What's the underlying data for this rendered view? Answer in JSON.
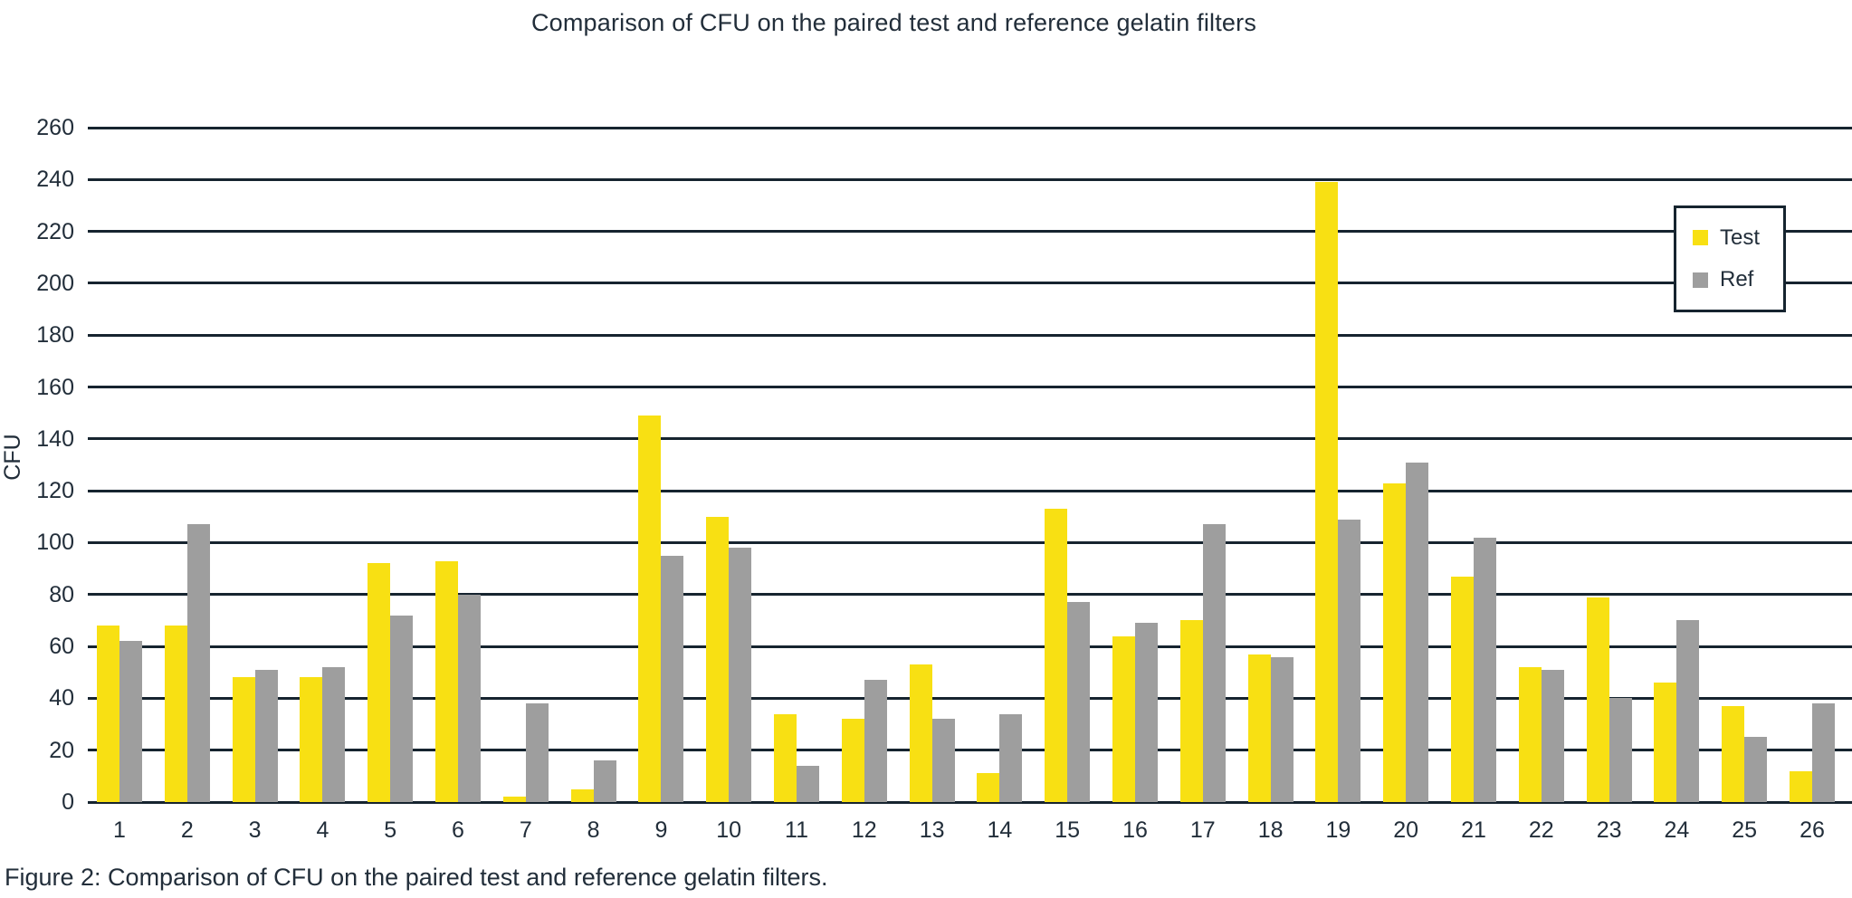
{
  "title": "Comparison of CFU on the paired test and reference gelatin filters",
  "caption": "Figure 2: Comparison of CFU on the paired test and reference gelatin filters.",
  "colors": {
    "background": "#FFFFFF",
    "axis_line": "#16242F",
    "text": "#222E3A",
    "legend_border": "#16242F",
    "test_yellow": "#F8E013",
    "ref_gray": "#9E9E9E"
  },
  "chart_data": {
    "type": "bar",
    "title": "Comparison of CFU on the paired test and reference gelatin filters",
    "xlabel": "",
    "ylabel": "CFU",
    "ylim": [
      0,
      260
    ],
    "ytick_step": 20,
    "grid": true,
    "legend_position": "upper-right",
    "categories": [
      "1",
      "2",
      "3",
      "4",
      "5",
      "6",
      "7",
      "8",
      "9",
      "10",
      "11",
      "12",
      "13",
      "14",
      "15",
      "16",
      "17",
      "18",
      "19",
      "20",
      "21",
      "22",
      "23",
      "24",
      "25",
      "26"
    ],
    "series": [
      {
        "name": "Test",
        "color": "#F8E013",
        "values": [
          68,
          68,
          48,
          48,
          92,
          93,
          2,
          5,
          149,
          110,
          34,
          32,
          53,
          11,
          113,
          64,
          70,
          57,
          239,
          123,
          87,
          52,
          79,
          46,
          37,
          12
        ]
      },
      {
        "name": "Ref",
        "color": "#9E9E9E",
        "values": [
          62,
          107,
          51,
          52,
          72,
          80,
          38,
          16,
          95,
          98,
          14,
          47,
          32,
          34,
          77,
          69,
          107,
          56,
          109,
          131,
          102,
          51,
          40,
          70,
          25,
          38
        ]
      }
    ]
  }
}
